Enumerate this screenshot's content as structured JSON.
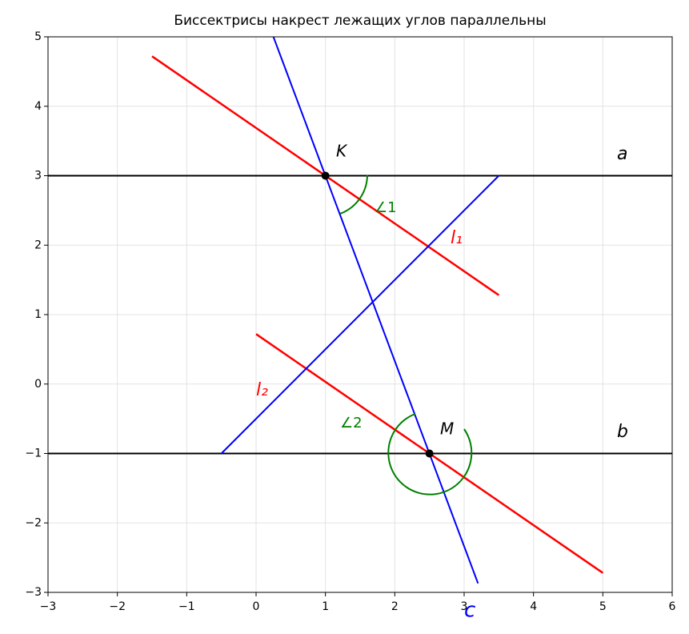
{
  "chart_data": {
    "type": "line",
    "title": "Биссектрисы накрест лежащих углов параллельны",
    "xlim": [
      -3,
      6
    ],
    "ylim": [
      -3,
      5
    ],
    "xticks": [
      {
        "value": -3,
        "label": "−3"
      },
      {
        "value": -2,
        "label": "−2"
      },
      {
        "value": -1,
        "label": "−1"
      },
      0,
      1,
      2,
      3,
      4,
      5,
      6
    ],
    "yticks": [
      {
        "value": -3,
        "label": "−3"
      },
      {
        "value": -2,
        "label": "−2"
      },
      {
        "value": -1,
        "label": "−1"
      },
      0,
      1,
      2,
      3,
      4,
      5
    ],
    "grid": true,
    "series": [
      {
        "color": "#000000",
        "x": [
          -3,
          6
        ],
        "values": [
          3,
          3
        ]
      },
      {
        "color": "#000000",
        "x": [
          -3,
          6
        ],
        "values": [
          -1,
          -1
        ]
      },
      {
        "color": "#0000ff",
        "x": [
          0.25,
          3.2
        ],
        "values": [
          5,
          -2.87
        ]
      },
      {
        "color": "#ff0000",
        "x": [
          -1.5,
          3.5
        ],
        "values": [
          4.72,
          1.28
        ]
      },
      {
        "color": "#ff0000",
        "x": [
          0,
          5
        ],
        "values": [
          0.72,
          -2.72
        ]
      },
      {
        "color": "#0000ff",
        "x": [
          -0.5,
          3.5
        ],
        "values": [
          -1,
          3
        ]
      }
    ],
    "points": {
      "color": "#000000",
      "x": [
        1,
        2.5
      ],
      "values": [
        3,
        -1
      ]
    },
    "annotations": [
      "K",
      "M",
      "a",
      "b",
      "c",
      "l₁",
      "l₂",
      "∠1",
      "∠2"
    ]
  }
}
